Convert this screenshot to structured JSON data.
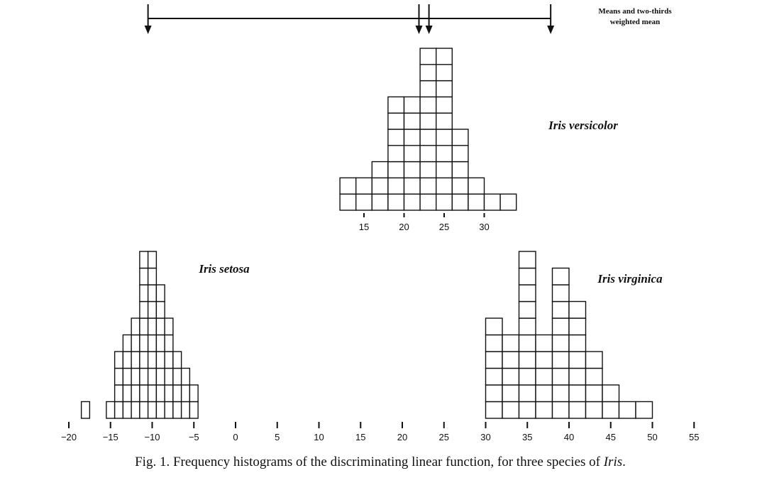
{
  "chart_data": {
    "type": "bar",
    "xaxis": {
      "ticks": [
        -20,
        -15,
        -10,
        -5,
        0,
        5,
        10,
        15,
        20,
        25,
        30,
        35,
        40,
        45,
        50,
        55
      ],
      "tick_labels": [
        "−20",
        "−15",
        "−10",
        "−5",
        "0",
        "5",
        "10",
        "15",
        "20",
        "25",
        "30",
        "35",
        "40",
        "45",
        "50",
        "55"
      ]
    },
    "series": [
      {
        "name": "Iris setosa",
        "bin_width": 1.0,
        "bins": [
          {
            "x": -18,
            "count": 1
          },
          {
            "x": -15,
            "count": 1
          },
          {
            "x": -14,
            "count": 4
          },
          {
            "x": -13,
            "count": 5
          },
          {
            "x": -12,
            "count": 6
          },
          {
            "x": -11,
            "count": 10
          },
          {
            "x": -10,
            "count": 10
          },
          {
            "x": -9,
            "count": 8
          },
          {
            "x": -8,
            "count": 6
          },
          {
            "x": -7,
            "count": 4
          },
          {
            "x": -6,
            "count": 3
          },
          {
            "x": -5,
            "count": 2
          }
        ]
      },
      {
        "name": "Iris versicolor",
        "inset_axis": {
          "ticks": [
            15,
            20,
            25,
            30
          ],
          "tick_labels": [
            "15",
            "20",
            "25",
            "30"
          ]
        },
        "bin_width": 2.0,
        "bins": [
          {
            "x": 13,
            "count": 2
          },
          {
            "x": 15,
            "count": 2
          },
          {
            "x": 17,
            "count": 3
          },
          {
            "x": 19,
            "count": 7
          },
          {
            "x": 21,
            "count": 7
          },
          {
            "x": 23,
            "count": 10
          },
          {
            "x": 25,
            "count": 10
          },
          {
            "x": 27,
            "count": 5
          },
          {
            "x": 29,
            "count": 2
          },
          {
            "x": 31,
            "count": 1
          },
          {
            "x": 33,
            "count": 1
          }
        ]
      },
      {
        "name": "Iris virginica",
        "bin_width": 2.0,
        "bins": [
          {
            "x": 31,
            "count": 6
          },
          {
            "x": 33,
            "count": 5
          },
          {
            "x": 35,
            "count": 10
          },
          {
            "x": 37,
            "count": 5
          },
          {
            "x": 39,
            "count": 9
          },
          {
            "x": 41,
            "count": 7
          },
          {
            "x": 43,
            "count": 4
          },
          {
            "x": 45,
            "count": 2
          },
          {
            "x": 47,
            "count": 1
          },
          {
            "x": 49,
            "count": 1
          }
        ]
      }
    ],
    "mean_markers": {
      "label_line1": "Means and two-thirds",
      "label_line2": "weighted mean",
      "values": [
        -10.5,
        22.0,
        23.2,
        37.8
      ]
    },
    "caption": {
      "prefix": "Fig. 1.  Frequency histograms of the discriminating linear function, for three species of ",
      "italic": "Iris",
      "suffix": "."
    }
  }
}
